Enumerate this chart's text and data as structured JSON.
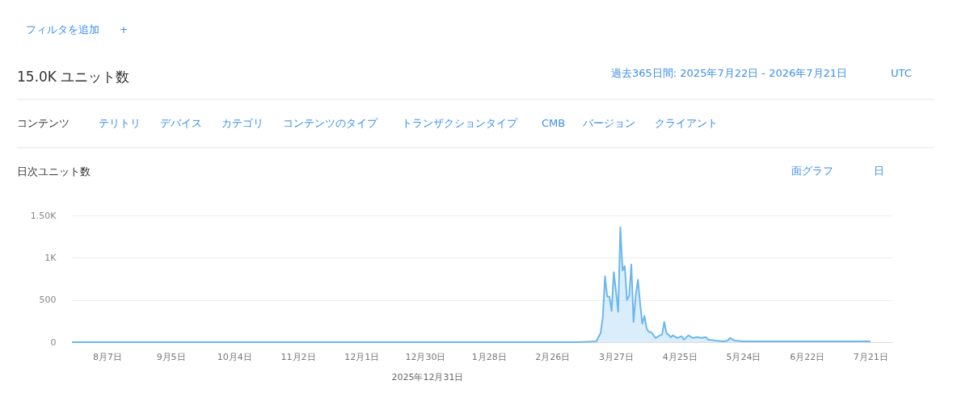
{
  "chart_data": {
    "type": "area",
    "title": "日次ユニット数",
    "subtitle": "15.0K ユニット数",
    "annotations": [
      "フィルタを追加",
      "+",
      "過去365日間: 2025年7月22日 - 2026年7月21日",
      "UTC",
      "コンテンツ",
      "テリトリ",
      "デバイス",
      "カテゴリ",
      "コンテンツのタイプ",
      "トランザクションタイプ",
      "CMB",
      "バージョン",
      "クライアント",
      "面グラフ",
      "日",
      "2025年12月31日"
    ],
    "x": [
      "2025-07-22",
      "2025-09-01",
      "2025-11-01",
      "2025-12-31",
      "2026-02-01",
      "2026-03-10",
      "2026-03-18",
      "2026-03-20",
      "2026-03-21",
      "2026-03-22",
      "2026-03-23",
      "2026-03-24",
      "2026-03-25",
      "2026-03-26",
      "2026-03-27",
      "2026-03-28",
      "2026-03-29",
      "2026-03-30",
      "2026-03-31",
      "2026-04-01",
      "2026-04-02",
      "2026-04-03",
      "2026-04-04",
      "2026-04-05",
      "2026-04-06",
      "2026-04-07",
      "2026-04-08",
      "2026-04-09",
      "2026-04-10",
      "2026-04-11",
      "2026-04-12",
      "2026-04-14",
      "2026-04-16",
      "2026-04-17",
      "2026-04-18",
      "2026-04-19",
      "2026-04-21",
      "2026-04-22",
      "2026-04-24",
      "2026-04-26",
      "2026-04-27",
      "2026-04-29",
      "2026-05-01",
      "2026-05-03",
      "2026-05-05",
      "2026-05-07",
      "2026-05-08",
      "2026-05-11",
      "2026-05-15",
      "2026-05-17",
      "2026-05-18",
      "2026-05-20",
      "2026-05-24",
      "2026-05-30",
      "2026-06-11",
      "2026-06-23",
      "2026-07-06",
      "2026-07-21"
    ],
    "series": [
      {
        "color": "#6cb8ee",
        "values": [
          0,
          0,
          0,
          0,
          0,
          0,
          10,
          110,
          300,
          780,
          540,
          540,
          370,
          830,
          600,
          360,
          1360,
          850,
          900,
          500,
          550,
          920,
          240,
          550,
          740,
          460,
          220,
          310,
          160,
          120,
          120,
          50,
          80,
          90,
          240,
          110,
          60,
          80,
          50,
          70,
          30,
          80,
          50,
          60,
          50,
          60,
          30,
          20,
          10,
          20,
          50,
          20,
          10,
          10,
          10,
          10,
          10,
          10
        ]
      }
    ],
    "xlim": [
      "2025-07-22",
      "2026-07-31"
    ],
    "xticks": [
      {
        "value": "2025-08-07",
        "label": "8月7日"
      },
      {
        "value": "2025-09-05",
        "label": "9月5日"
      },
      {
        "value": "2025-10-04",
        "label": "10月4日"
      },
      {
        "value": "2025-11-02",
        "label": "11月2日"
      },
      {
        "value": "2025-12-01",
        "label": "12月1日"
      },
      {
        "value": "2025-12-30",
        "label": "12月30日"
      },
      {
        "value": "2026-01-28",
        "label": "1月28日"
      },
      {
        "value": "2026-02-26",
        "label": "2月26日"
      },
      {
        "value": "2026-03-27",
        "label": "3月27日"
      },
      {
        "value": "2026-04-25",
        "label": "4月25日"
      },
      {
        "value": "2026-05-24",
        "label": "5月24日"
      },
      {
        "value": "2026-06-22",
        "label": "6月22日"
      },
      {
        "value": "2026-07-21",
        "label": "7月21日"
      }
    ],
    "ylim": [
      0,
      1500
    ],
    "yticks": [
      0,
      500,
      {
        "value": 1000,
        "label": "1K"
      },
      {
        "value": 1500,
        "label": "1.50K"
      }
    ],
    "grid": "y",
    "legend": false
  }
}
